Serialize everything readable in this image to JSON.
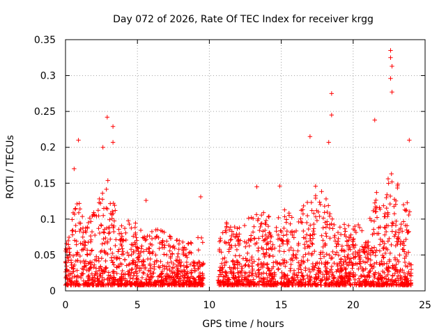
{
  "chart_data": {
    "type": "scatter",
    "title": "Day 072 of 2026, Rate Of TEC Index for receiver krgg",
    "xlabel": "GPS time / hours",
    "ylabel": "ROTI / TECUs",
    "xlim": [
      0,
      25
    ],
    "ylim": [
      0,
      0.35
    ],
    "xticks": [
      0,
      5,
      10,
      15,
      20,
      25
    ],
    "xtick_labels": [
      "0",
      "5",
      "10",
      "15",
      "20",
      "25"
    ],
    "yticks": [
      0,
      0.05,
      0.1,
      0.15,
      0.2,
      0.25,
      0.3,
      0.35
    ],
    "ytick_labels": [
      "0",
      "0.05",
      "0.1",
      "0.15",
      "0.2",
      "0.25",
      "0.3",
      "0.35"
    ],
    "grid": true,
    "marker": "+",
    "color": "#ff0000",
    "data_gap_hours": [
      9.6,
      10.6
    ],
    "series": [
      {
        "name": "ROTI",
        "notable_points": [
          {
            "x": 0.6,
            "y": 0.17
          },
          {
            "x": 0.9,
            "y": 0.21
          },
          {
            "x": 2.9,
            "y": 0.242
          },
          {
            "x": 3.3,
            "y": 0.229
          },
          {
            "x": 3.3,
            "y": 0.207
          },
          {
            "x": 2.6,
            "y": 0.2
          },
          {
            "x": 5.6,
            "y": 0.126
          },
          {
            "x": 9.4,
            "y": 0.131
          },
          {
            "x": 13.3,
            "y": 0.145
          },
          {
            "x": 14.9,
            "y": 0.146
          },
          {
            "x": 17.0,
            "y": 0.215
          },
          {
            "x": 18.3,
            "y": 0.207
          },
          {
            "x": 18.5,
            "y": 0.275
          },
          {
            "x": 18.5,
            "y": 0.245
          },
          {
            "x": 21.5,
            "y": 0.238
          },
          {
            "x": 22.6,
            "y": 0.335
          },
          {
            "x": 22.6,
            "y": 0.325
          },
          {
            "x": 22.7,
            "y": 0.313
          },
          {
            "x": 22.6,
            "y": 0.296
          },
          {
            "x": 22.7,
            "y": 0.277
          },
          {
            "x": 23.9,
            "y": 0.21
          }
        ]
      }
    ]
  }
}
